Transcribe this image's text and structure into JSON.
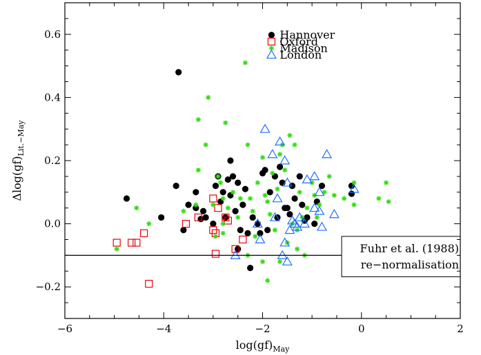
{
  "chart_data": {
    "type": "scatter",
    "xlabel": "log(gf)",
    "xlabel_sub": "May",
    "ylabel": "Δlog(gf)",
    "ylabel_sub": "Lit.−May",
    "xlim": [
      -6,
      2
    ],
    "ylim": [
      -0.3,
      0.7
    ],
    "xticks": [
      -6,
      -4,
      -2,
      0,
      2
    ],
    "yticks": [
      -0.2,
      0.0,
      0.2,
      0.4,
      0.6
    ],
    "xtick_labels": [
      "−6",
      "−4",
      "−2",
      "0",
      "2"
    ],
    "ytick_labels": [
      "−0.2",
      "0.0",
      "0.2",
      "0.4",
      "0.6"
    ],
    "grid": false,
    "legend_position": "top-right",
    "reference_line": {
      "y": -0.1,
      "x_end": -0.4
    },
    "annotation": [
      "Fuhr et al. (1988)",
      "re−normalisation"
    ],
    "series": [
      {
        "name": "Hannover",
        "marker": "filled-circle",
        "color": "#000000",
        "points": [
          [
            -3.7,
            0.48
          ],
          [
            -4.75,
            0.08
          ],
          [
            -4.05,
            0.02
          ],
          [
            -3.75,
            0.12
          ],
          [
            -3.6,
            -0.02
          ],
          [
            -3.5,
            0.06
          ],
          [
            -3.35,
            0.1
          ],
          [
            -3.35,
            0.05
          ],
          [
            -3.2,
            0.04
          ],
          [
            -3.15,
            0.02
          ],
          [
            -3.0,
            0.0
          ],
          [
            -2.95,
            0.12
          ],
          [
            -2.9,
            0.15
          ],
          [
            -2.85,
            0.07
          ],
          [
            -2.8,
            0.1
          ],
          [
            -2.75,
            0.02
          ],
          [
            -2.7,
            0.14
          ],
          [
            -2.65,
            0.2
          ],
          [
            -2.65,
            0.09
          ],
          [
            -2.6,
            0.15
          ],
          [
            -2.55,
            0.04
          ],
          [
            -2.5,
            0.13
          ],
          [
            -2.45,
            -0.02
          ],
          [
            -2.4,
            0.06
          ],
          [
            -2.35,
            0.11
          ],
          [
            -2.3,
            -0.03
          ],
          [
            -2.25,
            -0.14
          ],
          [
            -2.2,
            0.02
          ],
          [
            -2.1,
            0.0
          ],
          [
            -2.0,
            0.16
          ],
          [
            -1.95,
            0.17
          ],
          [
            -1.9,
            -0.02
          ],
          [
            -1.85,
            0.1
          ],
          [
            -1.75,
            0.15
          ],
          [
            -1.7,
            0.02
          ],
          [
            -1.65,
            0.18
          ],
          [
            -1.6,
            0.13
          ],
          [
            -1.5,
            0.05
          ],
          [
            -1.45,
            0.03
          ],
          [
            -1.35,
            0.08
          ],
          [
            -1.25,
            0.15
          ],
          [
            -1.2,
            0.06
          ],
          [
            -1.15,
            0.01
          ],
          [
            -1.1,
            0.02
          ],
          [
            -0.95,
            0.0
          ],
          [
            -0.9,
            0.07
          ],
          [
            -0.8,
            0.12
          ],
          [
            -0.2,
            0.12
          ],
          [
            -0.2,
            0.095
          ],
          [
            -2.5,
            -0.08
          ],
          [
            -3.25,
            0.015
          ],
          [
            -2.05,
            -0.03
          ],
          [
            -1.55,
            0.05
          ],
          [
            -1.4,
            0.12
          ]
        ]
      },
      {
        "name": "Oxford",
        "marker": "open-square",
        "color": "#e8000b",
        "points": [
          [
            -4.95,
            -0.06
          ],
          [
            -4.65,
            -0.06
          ],
          [
            -4.55,
            -0.06
          ],
          [
            -4.4,
            -0.03
          ],
          [
            -4.3,
            -0.19
          ],
          [
            -3.55,
            0.0
          ],
          [
            -3.3,
            0.02
          ],
          [
            -3.0,
            0.08
          ],
          [
            -3.0,
            -0.02
          ],
          [
            -2.95,
            -0.03
          ],
          [
            -2.95,
            -0.095
          ],
          [
            -2.9,
            0.05
          ],
          [
            -2.75,
            0.02
          ],
          [
            -2.7,
            0.01
          ],
          [
            -2.55,
            -0.08
          ],
          [
            -2.4,
            -0.05
          ]
        ]
      },
      {
        "name": "Madison",
        "marker": "asterisk",
        "color": "#33dd11",
        "points": [
          [
            -4.95,
            -0.08
          ],
          [
            -4.55,
            0.05
          ],
          [
            -4.3,
            0.0
          ],
          [
            -3.6,
            0.04
          ],
          [
            -3.3,
            0.33
          ],
          [
            -3.3,
            0.17
          ],
          [
            -3.35,
            0.06
          ],
          [
            -3.15,
            0.25
          ],
          [
            -3.1,
            0.4
          ],
          [
            -3.0,
            0.06
          ],
          [
            -2.95,
            -0.04
          ],
          [
            -2.9,
            0.15
          ],
          [
            -2.85,
            0.13
          ],
          [
            -2.8,
            0.08
          ],
          [
            -2.8,
            0.0
          ],
          [
            -2.75,
            0.32
          ],
          [
            -2.7,
            0.05
          ],
          [
            -2.6,
            0.1
          ],
          [
            -2.5,
            0.02
          ],
          [
            -2.45,
            0.08
          ],
          [
            -2.35,
            0.51
          ],
          [
            -2.3,
            0.25
          ],
          [
            -2.25,
            0.08
          ],
          [
            -2.2,
            0.04
          ],
          [
            -2.15,
            -0.04
          ],
          [
            -2.1,
            0.13
          ],
          [
            -2.0,
            0.21
          ],
          [
            -1.95,
            0.09
          ],
          [
            -1.9,
            -0.18
          ],
          [
            -1.85,
            0.03
          ],
          [
            -1.8,
            0.16
          ],
          [
            -1.75,
            -0.02
          ],
          [
            -1.7,
            0.11
          ],
          [
            -1.65,
            0.22
          ],
          [
            -1.6,
            0.25
          ],
          [
            -1.55,
            0.17
          ],
          [
            -1.5,
            -0.06
          ],
          [
            -1.45,
            0.28
          ],
          [
            -1.4,
            0.0
          ],
          [
            -1.35,
            0.25
          ],
          [
            -1.3,
            -0.02
          ],
          [
            -1.25,
            0.1
          ],
          [
            -1.2,
            0.02
          ],
          [
            -1.15,
            -0.1
          ],
          [
            -1.1,
            0.05
          ],
          [
            -1.0,
            0.13
          ],
          [
            -0.95,
            0.09
          ],
          [
            -0.9,
            0.02
          ],
          [
            -0.85,
            0.06
          ],
          [
            -0.75,
            0.1
          ],
          [
            -0.65,
            0.15
          ],
          [
            -0.55,
            0.09
          ],
          [
            -0.35,
            0.08
          ],
          [
            -0.15,
            0.06
          ],
          [
            -0.15,
            0.13
          ],
          [
            0.35,
            0.08
          ],
          [
            0.5,
            0.13
          ],
          [
            0.55,
            0.07
          ],
          [
            -1.65,
            -0.12
          ],
          [
            -1.3,
            -0.08
          ],
          [
            -2.0,
            -0.12
          ],
          [
            -2.8,
            -0.03
          ],
          [
            -2.3,
            -0.1
          ],
          [
            -1.9,
            0.07
          ]
        ]
      },
      {
        "name": "London",
        "marker": "open-triangle",
        "color": "#1e6fff",
        "points": [
          [
            -2.55,
            -0.1
          ],
          [
            -2.1,
            0.0
          ],
          [
            -2.05,
            -0.05
          ],
          [
            -1.95,
            0.3
          ],
          [
            -1.8,
            0.22
          ],
          [
            -1.75,
            0.02
          ],
          [
            -1.7,
            0.08
          ],
          [
            -1.65,
            0.26
          ],
          [
            -1.6,
            -0.1
          ],
          [
            -1.55,
            0.2
          ],
          [
            -1.55,
            -0.06
          ],
          [
            -1.5,
            -0.12
          ],
          [
            -1.5,
            0.13
          ],
          [
            -1.45,
            -0.02
          ],
          [
            -1.4,
            0.01
          ],
          [
            -1.35,
            0.0
          ],
          [
            -1.3,
            -0.01
          ],
          [
            -1.25,
            0.02
          ],
          [
            -1.15,
            0.0
          ],
          [
            -1.1,
            0.14
          ],
          [
            -0.95,
            0.15
          ],
          [
            -0.95,
            0.05
          ],
          [
            -0.85,
            0.04
          ],
          [
            -0.85,
            0.1
          ],
          [
            -0.7,
            0.22
          ],
          [
            -0.55,
            0.03
          ],
          [
            -0.15,
            0.11
          ],
          [
            -0.8,
            -0.01
          ]
        ]
      }
    ]
  }
}
